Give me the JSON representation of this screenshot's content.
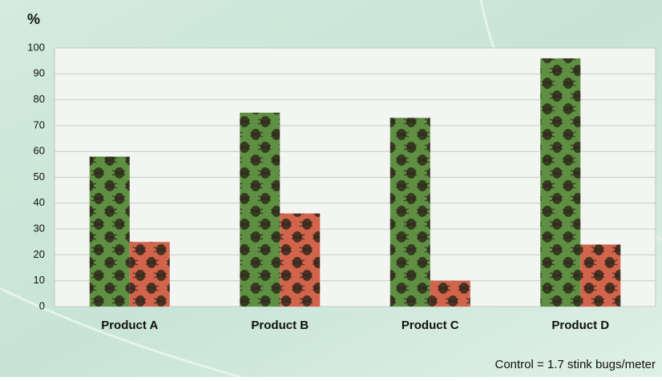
{
  "chart_data": {
    "type": "bar",
    "y_label": "%",
    "categories": [
      "Product A",
      "Product B",
      "Product C",
      "Product D"
    ],
    "series": [
      {
        "color": "#5f8f43",
        "values": [
          58,
          75,
          73,
          96
        ]
      },
      {
        "color": "#d2644c",
        "values": [
          25,
          36,
          10,
          24
        ]
      }
    ],
    "ylim": [
      0,
      100
    ],
    "yticks": [
      0,
      10,
      20,
      30,
      40,
      50,
      60,
      70,
      80,
      90,
      100
    ],
    "grid": true,
    "note": "Control = 1.7 stink bugs/meter"
  }
}
